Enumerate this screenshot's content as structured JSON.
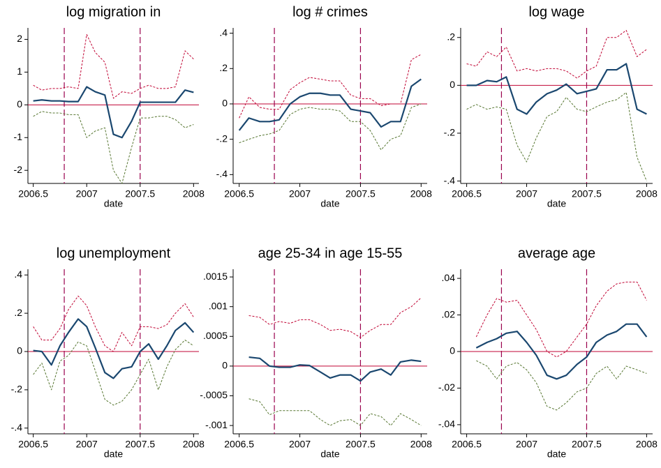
{
  "chart_data": [
    {
      "type": "line",
      "title": "log migration in",
      "xlabel": "date",
      "x": [
        2006.5,
        2006.58,
        2006.67,
        2006.75,
        2006.83,
        2006.92,
        2007,
        2007.08,
        2007.17,
        2007.25,
        2007.33,
        2007.42,
        2007.5,
        2007.58,
        2007.67,
        2007.75,
        2007.83,
        2007.92,
        2008
      ],
      "xlim": [
        2006.45,
        2008.05
      ],
      "xticks": [
        2006.5,
        2007,
        2007.5,
        2008
      ],
      "ylim": [
        -2.4,
        2.35
      ],
      "yticks": [
        -2,
        -1,
        0,
        1,
        2
      ],
      "vlines": [
        2006.79,
        2007.5
      ],
      "vline_color": "#99004d",
      "hline": 0,
      "hline_color": "#c10534",
      "series": [
        {
          "color": "#1a476f",
          "dash": "none",
          "width": 2.2,
          "values": [
            0.12,
            0.15,
            0.12,
            0.12,
            0.1,
            0.1,
            0.55,
            0.4,
            0.3,
            -0.9,
            -1.0,
            -0.5,
            0.08,
            0.08,
            0.08,
            0.08,
            0.08,
            0.45,
            0.38
          ]
        },
        {
          "color": "#c10534",
          "dash": "3 2",
          "width": 1,
          "values": [
            0.6,
            0.45,
            0.5,
            0.5,
            0.55,
            0.5,
            2.15,
            1.6,
            1.3,
            0.2,
            0.4,
            0.35,
            0.5,
            0.6,
            0.5,
            0.5,
            0.55,
            1.65,
            1.4
          ]
        },
        {
          "color": "#55752f",
          "dash": "3 2",
          "width": 1,
          "values": [
            -0.35,
            -0.2,
            -0.25,
            -0.25,
            -0.3,
            -0.3,
            -1.0,
            -0.8,
            -0.7,
            -2.0,
            -2.4,
            -1.3,
            -0.4,
            -0.4,
            -0.35,
            -0.35,
            -0.45,
            -0.7,
            -0.6
          ]
        }
      ]
    },
    {
      "type": "line",
      "title": "log # crimes",
      "xlabel": "date",
      "x": [
        2006.5,
        2006.58,
        2006.67,
        2006.75,
        2006.83,
        2006.92,
        2007,
        2007.08,
        2007.17,
        2007.25,
        2007.33,
        2007.42,
        2007.5,
        2007.58,
        2007.67,
        2007.75,
        2007.83,
        2007.92,
        2008
      ],
      "xlim": [
        2006.45,
        2008.05
      ],
      "xticks": [
        2006.5,
        2007,
        2007.5,
        2008
      ],
      "ylim": [
        -0.45,
        0.43
      ],
      "yticks": [
        {
          "value": -0.4,
          "label": "-.4"
        },
        {
          "value": -0.2,
          "label": "-.2"
        },
        0,
        {
          "value": 0.2,
          "label": ".2"
        },
        {
          "value": 0.4,
          "label": ".4"
        }
      ],
      "vlines": [
        2006.79,
        2007.5
      ],
      "vline_color": "#99004d",
      "hline": 0,
      "hline_color": "#c10534",
      "series": [
        {
          "color": "#1a476f",
          "dash": "none",
          "width": 2.2,
          "values": [
            -0.15,
            -0.08,
            -0.1,
            -0.1,
            -0.09,
            0.0,
            0.04,
            0.06,
            0.06,
            0.05,
            0.05,
            -0.03,
            -0.04,
            -0.05,
            -0.13,
            -0.1,
            -0.1,
            0.1,
            0.14
          ]
        },
        {
          "color": "#c10534",
          "dash": "3 2",
          "width": 1,
          "values": [
            -0.08,
            0.04,
            -0.02,
            -0.03,
            -0.03,
            0.08,
            0.12,
            0.15,
            0.14,
            0.13,
            0.13,
            0.05,
            0.03,
            0.03,
            -0.01,
            0.0,
            0.0,
            0.25,
            0.28
          ]
        },
        {
          "color": "#55752f",
          "dash": "3 2",
          "width": 1,
          "values": [
            -0.22,
            -0.2,
            -0.18,
            -0.17,
            -0.15,
            -0.06,
            -0.03,
            -0.02,
            -0.03,
            -0.03,
            -0.04,
            -0.1,
            -0.1,
            -0.15,
            -0.26,
            -0.2,
            -0.18,
            -0.02,
            0.0
          ]
        }
      ]
    },
    {
      "type": "line",
      "title": "log wage",
      "xlabel": "date",
      "x": [
        2006.5,
        2006.58,
        2006.67,
        2006.75,
        2006.83,
        2006.92,
        2007,
        2007.08,
        2007.17,
        2007.25,
        2007.33,
        2007.42,
        2007.5,
        2007.58,
        2007.67,
        2007.75,
        2007.83,
        2007.92,
        2008
      ],
      "xlim": [
        2006.45,
        2008.05
      ],
      "xticks": [
        2006.5,
        2007,
        2007.5,
        2008
      ],
      "ylim": [
        -0.41,
        0.24
      ],
      "yticks": [
        {
          "value": -0.4,
          "label": "-.4"
        },
        {
          "value": -0.2,
          "label": "-.2"
        },
        0,
        {
          "value": 0.2,
          "label": ".2"
        }
      ],
      "vlines": [
        2006.79,
        2007.5
      ],
      "vline_color": "#99004d",
      "hline": 0,
      "hline_color": "#c10534",
      "series": [
        {
          "color": "#1a476f",
          "dash": "none",
          "width": 2.2,
          "values": [
            0.0,
            0.0,
            0.02,
            0.015,
            0.035,
            -0.1,
            -0.12,
            -0.07,
            -0.035,
            -0.02,
            0.005,
            -0.035,
            -0.025,
            -0.015,
            0.065,
            0.065,
            0.09,
            -0.1,
            -0.12
          ]
        },
        {
          "color": "#c10534",
          "dash": "3 2",
          "width": 1,
          "values": [
            0.09,
            0.08,
            0.14,
            0.12,
            0.16,
            0.06,
            0.07,
            0.06,
            0.07,
            0.07,
            0.06,
            0.03,
            0.06,
            0.08,
            0.2,
            0.2,
            0.23,
            0.12,
            0.15
          ]
        },
        {
          "color": "#55752f",
          "dash": "3 2",
          "width": 1,
          "values": [
            -0.1,
            -0.08,
            -0.1,
            -0.09,
            -0.1,
            -0.25,
            -0.32,
            -0.22,
            -0.13,
            -0.11,
            -0.05,
            -0.1,
            -0.11,
            -0.09,
            -0.07,
            -0.06,
            -0.03,
            -0.3,
            -0.4
          ]
        }
      ]
    },
    {
      "type": "line",
      "title": "log unemployment",
      "xlabel": "date",
      "x": [
        2006.5,
        2006.58,
        2006.67,
        2006.75,
        2006.83,
        2006.92,
        2007,
        2007.08,
        2007.17,
        2007.25,
        2007.33,
        2007.42,
        2007.5,
        2007.58,
        2007.67,
        2007.75,
        2007.83,
        2007.92,
        2008
      ],
      "xlim": [
        2006.45,
        2008.05
      ],
      "xticks": [
        2006.5,
        2007,
        2007.5,
        2008
      ],
      "ylim": [
        -0.43,
        0.43
      ],
      "yticks": [
        {
          "value": -0.4,
          "label": "-.4"
        },
        {
          "value": -0.2,
          "label": "-.2"
        },
        0,
        {
          "value": 0.2,
          "label": ".2"
        },
        {
          "value": 0.4,
          "label": ".4"
        }
      ],
      "vlines": [
        2006.79,
        2007.5
      ],
      "vline_color": "#99004d",
      "hline": 0,
      "hline_color": "#c10534",
      "series": [
        {
          "color": "#1a476f",
          "dash": "none",
          "width": 2.2,
          "values": [
            0.005,
            0.0,
            -0.07,
            0.03,
            0.1,
            0.17,
            0.13,
            0.02,
            -0.11,
            -0.14,
            -0.09,
            -0.08,
            0.0,
            0.04,
            -0.04,
            0.03,
            0.11,
            0.15,
            0.1
          ]
        },
        {
          "color": "#c10534",
          "dash": "3 2",
          "width": 1,
          "values": [
            0.13,
            0.06,
            0.06,
            0.12,
            0.22,
            0.29,
            0.24,
            0.13,
            0.03,
            0.0,
            0.1,
            0.03,
            0.13,
            0.13,
            0.12,
            0.14,
            0.2,
            0.25,
            0.18
          ]
        },
        {
          "color": "#55752f",
          "dash": "3 2",
          "width": 1,
          "values": [
            -0.12,
            -0.06,
            -0.2,
            -0.05,
            -0.02,
            0.05,
            0.03,
            -0.1,
            -0.25,
            -0.28,
            -0.26,
            -0.2,
            -0.12,
            -0.04,
            -0.2,
            -0.08,
            0.01,
            0.06,
            0.03
          ]
        }
      ]
    },
    {
      "type": "line",
      "title": "age 25-34 in age 15-55",
      "xlabel": "date",
      "x": [
        2006.5,
        2006.58,
        2006.67,
        2006.75,
        2006.83,
        2006.92,
        2007,
        2007.08,
        2007.17,
        2007.25,
        2007.33,
        2007.42,
        2007.5,
        2007.58,
        2007.67,
        2007.75,
        2007.83,
        2007.92,
        2008
      ],
      "xlim": [
        2006.45,
        2008.05
      ],
      "xticks": [
        2006.5,
        2007,
        2007.5,
        2008
      ],
      "ylim": [
        -0.00114,
        0.00163
      ],
      "yticks": [
        {
          "value": -0.001,
          "label": "-.001"
        },
        {
          "value": -0.0005,
          "label": "-.0005"
        },
        0,
        {
          "value": 0.0005,
          "label": ".0005"
        },
        {
          "value": 0.001,
          "label": ".001"
        },
        {
          "value": 0.0015,
          "label": ".0015"
        }
      ],
      "vlines": [
        2006.79,
        2007.5
      ],
      "vline_color": "#99004d",
      "hline": 0,
      "hline_color": "#c10534",
      "series": [
        {
          "color": "#1a476f",
          "dash": "none",
          "width": 2.2,
          "values": [
            null,
            0.00015,
            0.00013,
            0.0,
            -2e-05,
            -2e-05,
            2e-05,
            1e-05,
            -0.0001,
            -0.0002,
            -0.00015,
            -0.00015,
            -0.00025,
            -0.0001,
            -5e-05,
            -0.00015,
            7e-05,
            0.0001,
            8e-05
          ]
        },
        {
          "color": "#c10534",
          "dash": "3 2",
          "width": 1,
          "values": [
            null,
            0.00085,
            0.00082,
            0.0007,
            0.00075,
            0.00072,
            0.00078,
            0.00078,
            0.0007,
            0.0006,
            0.00062,
            0.00058,
            0.00048,
            0.0006,
            0.0007,
            0.0007,
            0.0009,
            0.001,
            0.00115
          ]
        },
        {
          "color": "#55752f",
          "dash": "3 2",
          "width": 1,
          "values": [
            null,
            -0.00055,
            -0.0006,
            -0.00082,
            -0.00075,
            -0.00075,
            -0.00075,
            -0.00075,
            -0.0009,
            -0.001,
            -0.00092,
            -0.0009,
            -0.001,
            -0.0008,
            -0.00085,
            -0.001,
            -0.0008,
            -0.0009,
            -0.001
          ]
        }
      ]
    },
    {
      "type": "line",
      "title": "average age",
      "xlabel": "date",
      "x": [
        2006.5,
        2006.58,
        2006.67,
        2006.75,
        2006.83,
        2006.92,
        2007,
        2007.08,
        2007.17,
        2007.25,
        2007.33,
        2007.42,
        2007.5,
        2007.58,
        2007.67,
        2007.75,
        2007.83,
        2007.92,
        2008
      ],
      "xlim": [
        2006.45,
        2008.05
      ],
      "xticks": [
        2006.5,
        2007,
        2007.5,
        2008
      ],
      "ylim": [
        -0.045,
        0.045
      ],
      "yticks": [
        {
          "value": -0.04,
          "label": "-.04"
        },
        {
          "value": -0.02,
          "label": "-.02"
        },
        0,
        {
          "value": 0.02,
          "label": ".02"
        },
        {
          "value": 0.04,
          "label": ".04"
        }
      ],
      "vlines": [
        2006.79,
        2007.5
      ],
      "vline_color": "#99004d",
      "hline": 0,
      "hline_color": "#c10534",
      "series": [
        {
          "color": "#1a476f",
          "dash": "none",
          "width": 2.2,
          "values": [
            null,
            0.002,
            0.005,
            0.007,
            0.01,
            0.011,
            0.005,
            -0.002,
            -0.013,
            -0.015,
            -0.013,
            -0.007,
            -0.003,
            0.005,
            0.009,
            0.011,
            0.015,
            0.015,
            0.008
          ]
        },
        {
          "color": "#c10534",
          "dash": "3 2",
          "width": 1,
          "values": [
            null,
            0.008,
            0.02,
            0.029,
            0.027,
            0.028,
            0.02,
            0.012,
            0.0,
            -0.003,
            0.0,
            0.008,
            0.015,
            0.025,
            0.033,
            0.037,
            0.038,
            0.038,
            0.028
          ]
        },
        {
          "color": "#55752f",
          "dash": "3 2",
          "width": 1,
          "values": [
            null,
            -0.005,
            -0.008,
            -0.015,
            -0.008,
            -0.006,
            -0.01,
            -0.017,
            -0.03,
            -0.032,
            -0.028,
            -0.022,
            -0.02,
            -0.012,
            -0.008,
            -0.015,
            -0.008,
            -0.01,
            -0.012
          ]
        }
      ]
    }
  ]
}
